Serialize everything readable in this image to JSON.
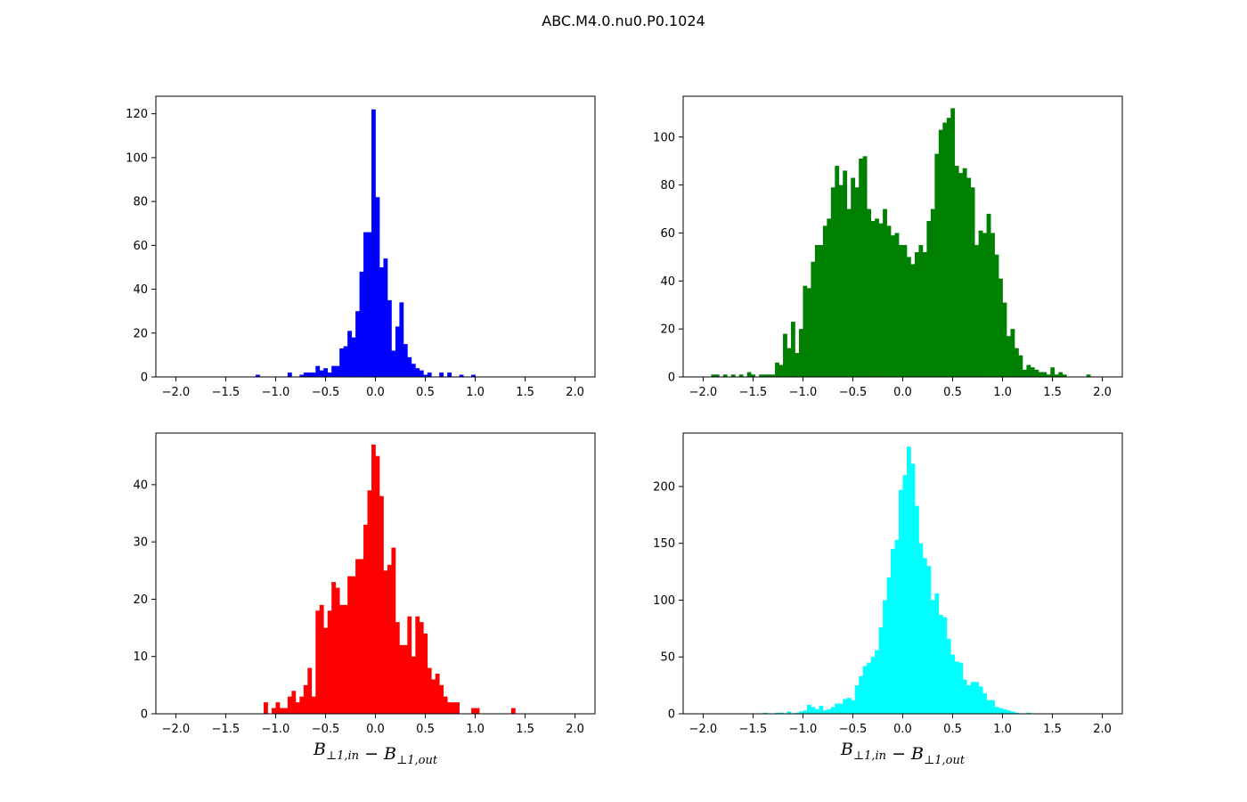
{
  "title": "ABC.M4.0.nu0.P0.1024",
  "chart_data": [
    {
      "type": "histogram",
      "color": "#0000ff",
      "xlim": [
        -2.2,
        2.2
      ],
      "ylim": [
        0,
        128
      ],
      "xticks": [
        -2.0,
        -1.5,
        -1.0,
        -0.5,
        0.0,
        0.5,
        1.0,
        1.5,
        2.0
      ],
      "yticks": [
        0,
        20,
        40,
        60,
        80,
        100,
        120
      ],
      "xlabel": "",
      "bin_range": [
        -2.0,
        2.0
      ],
      "bin_width": 0.04,
      "bars": [
        [
          -1.2,
          1
        ],
        [
          -0.88,
          2
        ],
        [
          -0.76,
          1
        ],
        [
          -0.72,
          2
        ],
        [
          -0.68,
          2
        ],
        [
          -0.64,
          2
        ],
        [
          -0.6,
          5
        ],
        [
          -0.56,
          3
        ],
        [
          -0.52,
          4
        ],
        [
          -0.48,
          2
        ],
        [
          -0.44,
          5
        ],
        [
          -0.4,
          5
        ],
        [
          -0.36,
          13
        ],
        [
          -0.32,
          14
        ],
        [
          -0.28,
          21
        ],
        [
          -0.24,
          18
        ],
        [
          -0.2,
          30
        ],
        [
          -0.16,
          48
        ],
        [
          -0.12,
          66
        ],
        [
          -0.08,
          66
        ],
        [
          -0.04,
          122
        ],
        [
          0.0,
          82
        ],
        [
          0.04,
          50
        ],
        [
          0.08,
          54
        ],
        [
          0.12,
          35
        ],
        [
          0.16,
          12
        ],
        [
          0.2,
          23
        ],
        [
          0.24,
          34
        ],
        [
          0.28,
          15
        ],
        [
          0.32,
          9
        ],
        [
          0.36,
          6
        ],
        [
          0.4,
          4
        ],
        [
          0.44,
          3
        ],
        [
          0.48,
          1
        ],
        [
          0.52,
          2
        ],
        [
          0.64,
          2
        ],
        [
          0.72,
          2
        ],
        [
          0.84,
          1
        ],
        [
          0.96,
          1
        ]
      ]
    },
    {
      "type": "histogram",
      "color": "#008000",
      "xlim": [
        -2.2,
        2.2
      ],
      "ylim": [
        0,
        117
      ],
      "xticks": [
        -2.0,
        -1.5,
        -1.0,
        -0.5,
        0.0,
        0.5,
        1.0,
        1.5,
        2.0
      ],
      "yticks": [
        0,
        20,
        40,
        60,
        80,
        100
      ],
      "xlabel": "",
      "bin_range": [
        -2.0,
        2.0
      ],
      "bin_width": 0.04,
      "bars": [
        [
          -1.92,
          1
        ],
        [
          -1.88,
          1
        ],
        [
          -1.8,
          1
        ],
        [
          -1.72,
          1
        ],
        [
          -1.64,
          1
        ],
        [
          -1.56,
          2
        ],
        [
          -1.52,
          1
        ],
        [
          -1.44,
          1
        ],
        [
          -1.4,
          1
        ],
        [
          -1.36,
          1
        ],
        [
          -1.32,
          1
        ],
        [
          -1.28,
          6
        ],
        [
          -1.24,
          5
        ],
        [
          -1.2,
          18
        ],
        [
          -1.16,
          12
        ],
        [
          -1.12,
          23
        ],
        [
          -1.08,
          10
        ],
        [
          -1.04,
          20
        ],
        [
          -1.0,
          38
        ],
        [
          -0.96,
          37
        ],
        [
          -0.92,
          48
        ],
        [
          -0.88,
          55
        ],
        [
          -0.84,
          55
        ],
        [
          -0.8,
          63
        ],
        [
          -0.76,
          66
        ],
        [
          -0.72,
          79
        ],
        [
          -0.68,
          88
        ],
        [
          -0.64,
          80
        ],
        [
          -0.6,
          86
        ],
        [
          -0.56,
          70
        ],
        [
          -0.52,
          83
        ],
        [
          -0.48,
          79
        ],
        [
          -0.44,
          91
        ],
        [
          -0.4,
          92
        ],
        [
          -0.36,
          70
        ],
        [
          -0.32,
          65
        ],
        [
          -0.28,
          66
        ],
        [
          -0.24,
          64
        ],
        [
          -0.2,
          70
        ],
        [
          -0.16,
          63
        ],
        [
          -0.12,
          59
        ],
        [
          -0.08,
          60
        ],
        [
          -0.04,
          55
        ],
        [
          0.0,
          55
        ],
        [
          0.04,
          50
        ],
        [
          0.08,
          47
        ],
        [
          0.12,
          52
        ],
        [
          0.16,
          55
        ],
        [
          0.2,
          52
        ],
        [
          0.24,
          65
        ],
        [
          0.28,
          70
        ],
        [
          0.32,
          93
        ],
        [
          0.36,
          103
        ],
        [
          0.4,
          106
        ],
        [
          0.44,
          108
        ],
        [
          0.48,
          112
        ],
        [
          0.52,
          88
        ],
        [
          0.56,
          85
        ],
        [
          0.6,
          87
        ],
        [
          0.64,
          83
        ],
        [
          0.68,
          79
        ],
        [
          0.72,
          55
        ],
        [
          0.76,
          61
        ],
        [
          0.8,
          60
        ],
        [
          0.84,
          68
        ],
        [
          0.88,
          60
        ],
        [
          0.92,
          51
        ],
        [
          0.96,
          41
        ],
        [
          1.0,
          31
        ],
        [
          1.04,
          17
        ],
        [
          1.08,
          20
        ],
        [
          1.12,
          12
        ],
        [
          1.16,
          9
        ],
        [
          1.2,
          3
        ],
        [
          1.24,
          5
        ],
        [
          1.28,
          4
        ],
        [
          1.32,
          3
        ],
        [
          1.36,
          2
        ],
        [
          1.4,
          2
        ],
        [
          1.44,
          1
        ],
        [
          1.48,
          4
        ],
        [
          1.52,
          1
        ],
        [
          1.56,
          2
        ],
        [
          1.6,
          1
        ],
        [
          1.84,
          1
        ]
      ]
    },
    {
      "type": "histogram",
      "color": "#ff0000",
      "xlim": [
        -2.2,
        2.2
      ],
      "ylim": [
        0,
        49
      ],
      "xticks": [
        -2.0,
        -1.5,
        -1.0,
        -0.5,
        0.0,
        0.5,
        1.0,
        1.5,
        2.0
      ],
      "yticks": [
        0,
        10,
        20,
        30,
        40
      ],
      "xlabel": "B_{⊥1,in} − B_{⊥1,out}",
      "bin_range": [
        -2.0,
        2.0
      ],
      "bin_width": 0.04,
      "bars": [
        [
          -1.12,
          2
        ],
        [
          -1.04,
          1
        ],
        [
          -1.0,
          2
        ],
        [
          -0.96,
          1
        ],
        [
          -0.92,
          1
        ],
        [
          -0.88,
          3
        ],
        [
          -0.84,
          4
        ],
        [
          -0.8,
          2
        ],
        [
          -0.76,
          3
        ],
        [
          -0.72,
          5
        ],
        [
          -0.68,
          8
        ],
        [
          -0.64,
          3
        ],
        [
          -0.6,
          18
        ],
        [
          -0.56,
          19
        ],
        [
          -0.52,
          15
        ],
        [
          -0.48,
          18
        ],
        [
          -0.44,
          23
        ],
        [
          -0.4,
          22
        ],
        [
          -0.36,
          19
        ],
        [
          -0.32,
          19
        ],
        [
          -0.28,
          24
        ],
        [
          -0.24,
          24
        ],
        [
          -0.2,
          27
        ],
        [
          -0.16,
          27
        ],
        [
          -0.12,
          33
        ],
        [
          -0.08,
          39
        ],
        [
          -0.04,
          47
        ],
        [
          0.0,
          45
        ],
        [
          0.04,
          38
        ],
        [
          0.08,
          25
        ],
        [
          0.12,
          26
        ],
        [
          0.16,
          29
        ],
        [
          0.2,
          16
        ],
        [
          0.24,
          12
        ],
        [
          0.28,
          12
        ],
        [
          0.32,
          17
        ],
        [
          0.36,
          10
        ],
        [
          0.4,
          17
        ],
        [
          0.44,
          16
        ],
        [
          0.48,
          14
        ],
        [
          0.52,
          8
        ],
        [
          0.56,
          6
        ],
        [
          0.6,
          7
        ],
        [
          0.64,
          5
        ],
        [
          0.68,
          3
        ],
        [
          0.72,
          2
        ],
        [
          0.76,
          2
        ],
        [
          0.8,
          2
        ],
        [
          0.96,
          1
        ],
        [
          1.0,
          1
        ],
        [
          1.36,
          1
        ]
      ]
    },
    {
      "type": "histogram",
      "color": "#00ffff",
      "xlim": [
        -2.2,
        2.2
      ],
      "ylim": [
        0,
        247
      ],
      "xticks": [
        -2.0,
        -1.5,
        -1.0,
        -0.5,
        0.0,
        0.5,
        1.0,
        1.5,
        2.0
      ],
      "yticks": [
        0,
        50,
        100,
        150,
        200
      ],
      "xlabel": "B_{⊥1,in} − B_{⊥1,out}",
      "bin_range": [
        -2.0,
        2.0
      ],
      "bin_width": 0.04,
      "bars": [
        [
          -1.4,
          1
        ],
        [
          -1.28,
          1
        ],
        [
          -1.24,
          1
        ],
        [
          -1.16,
          2
        ],
        [
          -1.08,
          1
        ],
        [
          -1.04,
          2
        ],
        [
          -1.0,
          3
        ],
        [
          -0.96,
          8
        ],
        [
          -0.92,
          6
        ],
        [
          -0.88,
          4
        ],
        [
          -0.84,
          7
        ],
        [
          -0.8,
          3
        ],
        [
          -0.76,
          4
        ],
        [
          -0.72,
          6
        ],
        [
          -0.68,
          9
        ],
        [
          -0.64,
          9
        ],
        [
          -0.6,
          13
        ],
        [
          -0.56,
          14
        ],
        [
          -0.52,
          12
        ],
        [
          -0.48,
          25
        ],
        [
          -0.44,
          33
        ],
        [
          -0.4,
          42
        ],
        [
          -0.36,
          45
        ],
        [
          -0.32,
          50
        ],
        [
          -0.28,
          56
        ],
        [
          -0.24,
          76
        ],
        [
          -0.2,
          100
        ],
        [
          -0.16,
          120
        ],
        [
          -0.12,
          145
        ],
        [
          -0.08,
          153
        ],
        [
          -0.04,
          197
        ],
        [
          0.0,
          210
        ],
        [
          0.04,
          235
        ],
        [
          0.08,
          220
        ],
        [
          0.12,
          183
        ],
        [
          0.16,
          150
        ],
        [
          0.2,
          137
        ],
        [
          0.24,
          130
        ],
        [
          0.28,
          100
        ],
        [
          0.32,
          106
        ],
        [
          0.36,
          87
        ],
        [
          0.4,
          85
        ],
        [
          0.44,
          66
        ],
        [
          0.48,
          52
        ],
        [
          0.52,
          46
        ],
        [
          0.56,
          45
        ],
        [
          0.6,
          30
        ],
        [
          0.64,
          25
        ],
        [
          0.68,
          28
        ],
        [
          0.72,
          28
        ],
        [
          0.76,
          24
        ],
        [
          0.8,
          18
        ],
        [
          0.84,
          12
        ],
        [
          0.88,
          12
        ],
        [
          0.92,
          6
        ],
        [
          0.96,
          5
        ],
        [
          1.0,
          4
        ],
        [
          1.04,
          3
        ],
        [
          1.08,
          2
        ],
        [
          1.12,
          1
        ],
        [
          1.24,
          1
        ]
      ]
    }
  ]
}
